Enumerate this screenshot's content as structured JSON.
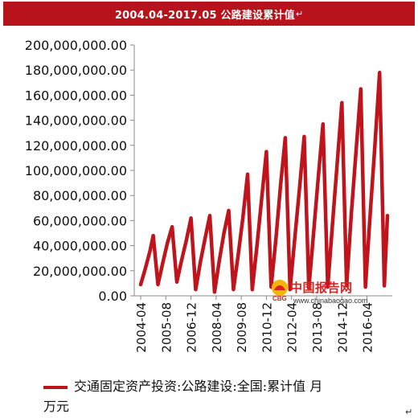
{
  "title": {
    "text": "2004.04-2017.05 公路建设累计值",
    "mark": "↵"
  },
  "watermark": {
    "cn": "中国报告网",
    "cbg": "CBG",
    "url": "www.chinabaogao.com"
  },
  "legend": {
    "line1": "交通固定资产投资:公路建设:全国:累计值  月",
    "line2": "万元",
    "color": "#c0141d"
  },
  "corner_mark": "↵",
  "chart_data": {
    "type": "line",
    "title": "2004.04-2017.05 公路建设累计值",
    "xlabel": "",
    "ylabel": "",
    "ylim": [
      0,
      200000000
    ],
    "ytick_values": [
      0,
      20000000,
      40000000,
      60000000,
      80000000,
      100000000,
      120000000,
      140000000,
      160000000,
      180000000,
      200000000
    ],
    "ytick_labels": [
      "0.00",
      "20,000,000.00",
      "40,000,000.00",
      "60,000,000.00",
      "80,000,000.00",
      "100,000,000.00",
      "120,000,000.00",
      "140,000,000.00",
      "160,000,000.00",
      "180,000,000.00",
      "200,000,000.00"
    ],
    "xtick_labels": [
      "2004-04",
      "2005-08",
      "2006-12",
      "2008-04",
      "2009-08",
      "2010-12",
      "2012-04",
      "2013-08",
      "2014-12",
      "2016-04"
    ],
    "x_start": "2004-04",
    "x_end": "2017-05",
    "series": [
      {
        "name": "交通固定资产投资:公路建设:全国:累计值",
        "color": "#c0141d",
        "points": [
          [
            "2004-04",
            9000000
          ],
          [
            "2004-07",
            22000000
          ],
          [
            "2004-10",
            36000000
          ],
          [
            "2004-12",
            48000000
          ],
          [
            "2005-03",
            9000000
          ],
          [
            "2005-06",
            26000000
          ],
          [
            "2005-09",
            42000000
          ],
          [
            "2005-12",
            55000000
          ],
          [
            "2006-03",
            11000000
          ],
          [
            "2006-06",
            28000000
          ],
          [
            "2006-09",
            44000000
          ],
          [
            "2006-12",
            62000000
          ],
          [
            "2007-03",
            5000000
          ],
          [
            "2007-06",
            27000000
          ],
          [
            "2007-09",
            46000000
          ],
          [
            "2007-12",
            64000000
          ],
          [
            "2008-03",
            3000000
          ],
          [
            "2008-06",
            28000000
          ],
          [
            "2008-09",
            50000000
          ],
          [
            "2008-12",
            68000000
          ],
          [
            "2009-03",
            5000000
          ],
          [
            "2009-06",
            32000000
          ],
          [
            "2009-09",
            62000000
          ],
          [
            "2009-12",
            97000000
          ],
          [
            "2010-03",
            5000000
          ],
          [
            "2010-06",
            40000000
          ],
          [
            "2010-09",
            78000000
          ],
          [
            "2010-12",
            115000000
          ],
          [
            "2011-03",
            7000000
          ],
          [
            "2011-06",
            45000000
          ],
          [
            "2011-09",
            88000000
          ],
          [
            "2011-12",
            126000000
          ],
          [
            "2012-03",
            5000000
          ],
          [
            "2012-06",
            45000000
          ],
          [
            "2012-09",
            85000000
          ],
          [
            "2012-12",
            127000000
          ],
          [
            "2013-03",
            6000000
          ],
          [
            "2013-06",
            50000000
          ],
          [
            "2013-09",
            95000000
          ],
          [
            "2013-12",
            137000000
          ],
          [
            "2014-03",
            7000000
          ],
          [
            "2014-06",
            57000000
          ],
          [
            "2014-09",
            105000000
          ],
          [
            "2014-12",
            154000000
          ],
          [
            "2015-03",
            8000000
          ],
          [
            "2015-06",
            65000000
          ],
          [
            "2015-09",
            115000000
          ],
          [
            "2015-12",
            165000000
          ],
          [
            "2016-03",
            7000000
          ],
          [
            "2016-06",
            65000000
          ],
          [
            "2016-09",
            120000000
          ],
          [
            "2016-12",
            178000000
          ],
          [
            "2017-03",
            8000000
          ],
          [
            "2017-05",
            64000000
          ]
        ]
      }
    ],
    "grid": false,
    "legend_position": "bottom"
  }
}
